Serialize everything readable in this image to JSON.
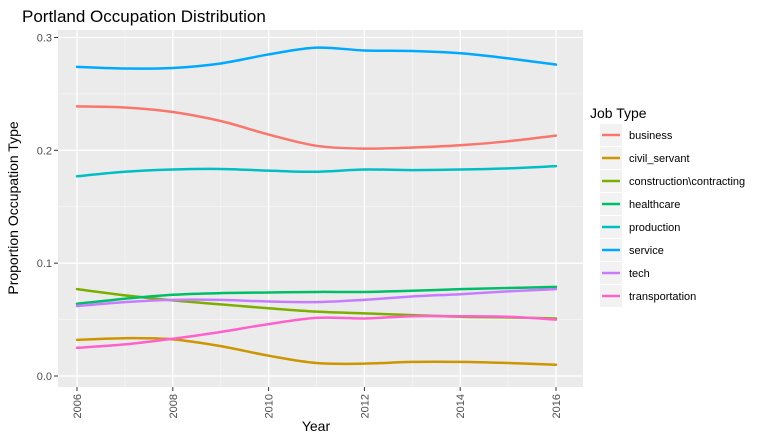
{
  "chart_data": {
    "type": "line",
    "title": "Portland Occupation Distribution",
    "xlabel": "Year",
    "ylabel": "Proportion Occupation Type",
    "xlim": [
      2006,
      2016
    ],
    "ylim": [
      0,
      0.3
    ],
    "x_ticks": [
      "2006",
      "2008",
      "2010",
      "2012",
      "2014",
      "2016"
    ],
    "y_ticks": [
      "0.0",
      "0.1",
      "0.2",
      "0.3"
    ],
    "legend_title": "Job Type",
    "legend_position": "right",
    "grid": true,
    "x": [
      2006,
      2007,
      2008,
      2009,
      2010,
      2011,
      2012,
      2013,
      2014,
      2015,
      2016
    ],
    "series": [
      {
        "name": "business",
        "color": "#F8766D",
        "values": [
          0.239,
          0.238,
          0.234,
          0.226,
          0.214,
          0.204,
          0.2015,
          0.2025,
          0.2045,
          0.208,
          0.213
        ]
      },
      {
        "name": "civil_servant",
        "color": "#CD9600",
        "values": [
          0.032,
          0.0335,
          0.0325,
          0.0265,
          0.018,
          0.0115,
          0.011,
          0.0125,
          0.0125,
          0.0115,
          0.01
        ]
      },
      {
        "name": "construction\\contracting",
        "color": "#7CAE00",
        "values": [
          0.077,
          0.0715,
          0.067,
          0.0635,
          0.06,
          0.057,
          0.0555,
          0.054,
          0.0525,
          0.052,
          0.051
        ]
      },
      {
        "name": "healthcare",
        "color": "#00BE67",
        "values": [
          0.064,
          0.0685,
          0.072,
          0.0735,
          0.074,
          0.0745,
          0.0745,
          0.0755,
          0.077,
          0.078,
          0.079
        ]
      },
      {
        "name": "production",
        "color": "#00BFC4",
        "values": [
          0.177,
          0.181,
          0.183,
          0.1835,
          0.182,
          0.181,
          0.183,
          0.1825,
          0.183,
          0.184,
          0.186
        ]
      },
      {
        "name": "service",
        "color": "#00A9FF",
        "values": [
          0.274,
          0.2725,
          0.273,
          0.277,
          0.285,
          0.291,
          0.2885,
          0.288,
          0.286,
          0.2815,
          0.276
        ]
      },
      {
        "name": "tech",
        "color": "#C77CFF",
        "values": [
          0.062,
          0.0655,
          0.0675,
          0.0675,
          0.066,
          0.0655,
          0.0675,
          0.0705,
          0.0725,
          0.075,
          0.077
        ]
      },
      {
        "name": "transportation",
        "color": "#FF61CC",
        "values": [
          0.025,
          0.028,
          0.033,
          0.039,
          0.046,
          0.0515,
          0.051,
          0.053,
          0.053,
          0.0525,
          0.05
        ]
      }
    ]
  }
}
